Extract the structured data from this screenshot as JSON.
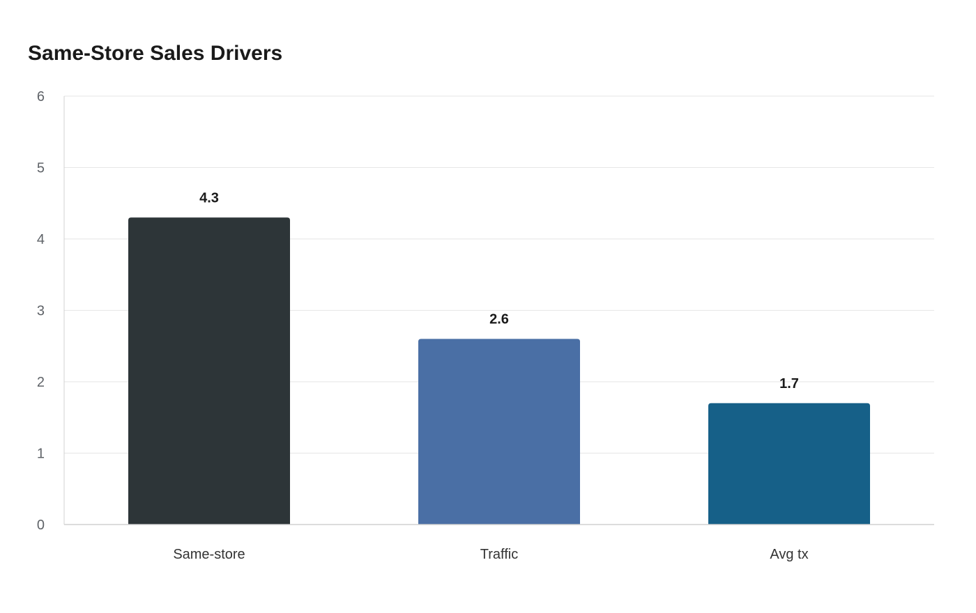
{
  "chart_data": {
    "type": "bar",
    "title": "Same-Store Sales Drivers",
    "xlabel": "",
    "ylabel": "",
    "categories": [
      "Same-store",
      "Traffic",
      "Avg tx"
    ],
    "values": [
      4.3,
      2.6,
      1.7
    ],
    "value_labels": [
      "4.3",
      "2.6",
      "1.7"
    ],
    "colors": [
      "#2d3538",
      "#4a6fa5",
      "#166088"
    ],
    "ylim": [
      0,
      6
    ],
    "yticks": [
      0,
      1,
      2,
      3,
      4,
      5,
      6
    ],
    "grid": true,
    "legend": "none"
  }
}
